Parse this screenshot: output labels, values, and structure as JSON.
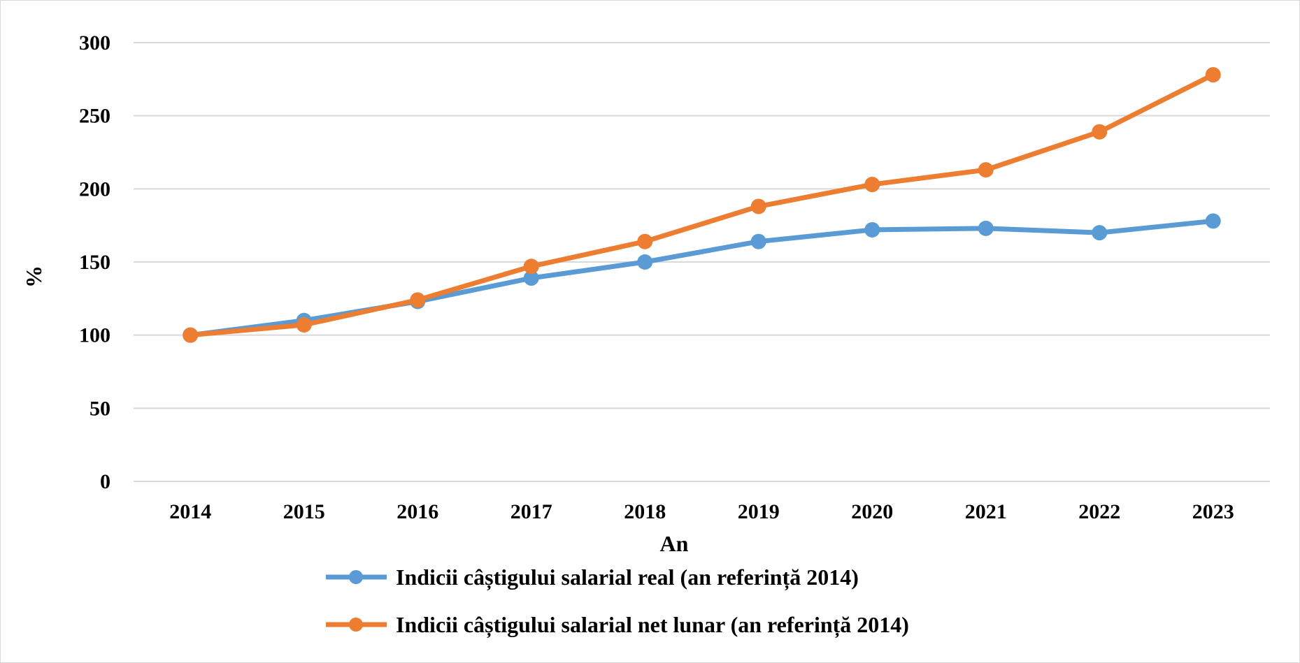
{
  "chart_data": {
    "type": "line",
    "title": "",
    "xlabel": "An",
    "ylabel": "%",
    "categories": [
      "2014",
      "2015",
      "2016",
      "2017",
      "2018",
      "2019",
      "2020",
      "2021",
      "2022",
      "2023"
    ],
    "ylim": [
      0,
      300
    ],
    "yticks": [
      0,
      50,
      100,
      150,
      200,
      250,
      300
    ],
    "grid": true,
    "legend_position": "bottom",
    "series": [
      {
        "name": "Indicii câștigului salarial real (an referință 2014)",
        "color": "#5b9bd5",
        "values": [
          100,
          110,
          123,
          139,
          150,
          164,
          172,
          173,
          170,
          178
        ]
      },
      {
        "name": "Indicii câștigului salarial net lunar (an referință 2014)",
        "color": "#ed7d31",
        "values": [
          100,
          107,
          124,
          147,
          164,
          188,
          203,
          213,
          239,
          278
        ]
      }
    ]
  }
}
